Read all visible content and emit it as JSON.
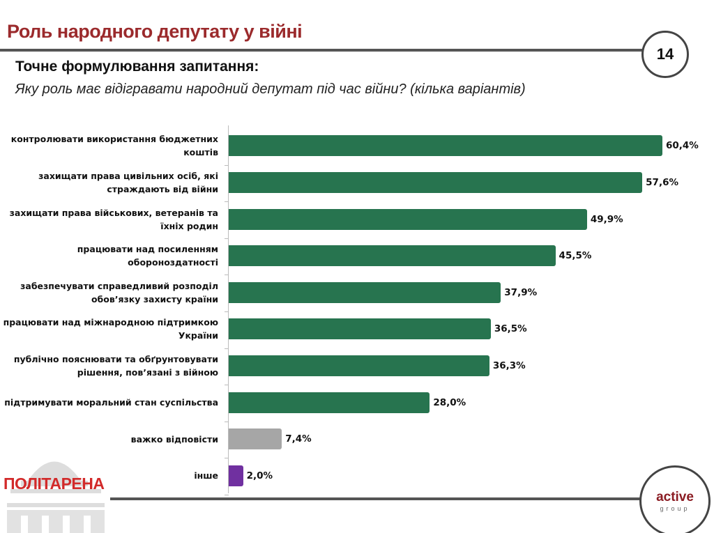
{
  "header": {
    "title": "Роль народного депутату у війні",
    "page_number": "14"
  },
  "question": {
    "heading": "Точне формулювання запитання:",
    "text": "Яку роль має відігравати народний депутат під час війни? (кілька варіантів)"
  },
  "chart_data": {
    "type": "bar",
    "orientation": "horizontal",
    "categories": [
      "контролювати використання бюджетних коштів",
      "захищати права цивільних осіб, які страждають від війни",
      "захищати права військових, ветеранів та їхніх родин",
      "працювати над посиленням обороноздатності",
      "забезпечувати справедливий розподіл обов’язку захисту країни",
      "працювати над міжнародною підтримкою України",
      "публічно пояснювати та обґрунтовувати рішення, пов’язані з війною",
      "підтримувати моральний стан суспільства",
      "важко відповісти",
      "інше"
    ],
    "values": [
      60.4,
      57.6,
      49.9,
      45.5,
      37.9,
      36.5,
      36.3,
      28.0,
      7.4,
      2.0
    ],
    "value_labels": [
      "60,4%",
      "57,6%",
      "49,9%",
      "45,5%",
      "37,9%",
      "36,5%",
      "36,3%",
      "28,0%",
      "7,4%",
      "2,0%"
    ],
    "colors": [
      "#27744f",
      "#27744f",
      "#27744f",
      "#27744f",
      "#27744f",
      "#27744f",
      "#27744f",
      "#27744f",
      "#a6a6a6",
      "#7030a0"
    ],
    "unit": "%",
    "grid": false
  },
  "logos": {
    "left": "ПОЛІТАРЕНА",
    "right_main": "active",
    "right_sub": "group"
  }
}
